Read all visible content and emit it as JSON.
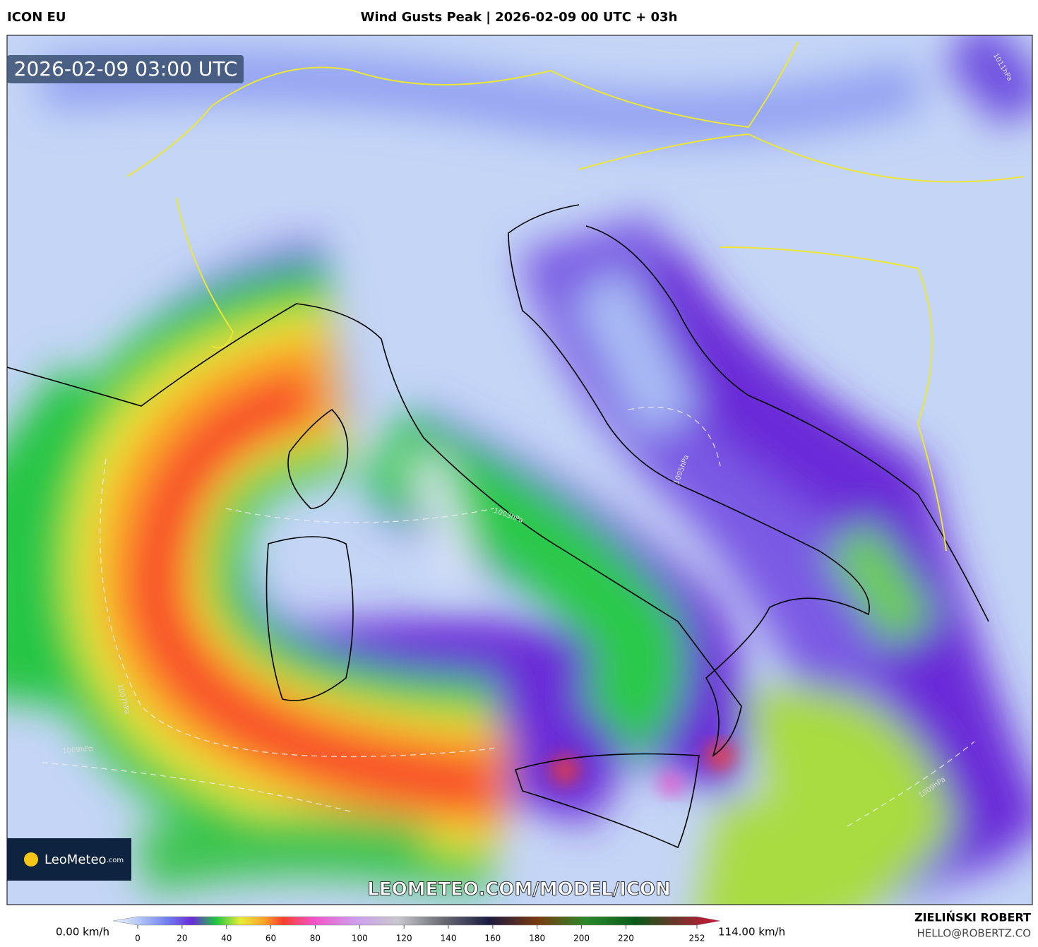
{
  "header": {
    "model": "ICON EU",
    "title": "Wind Gusts Peak | 2026-02-09 00 UTC + 03h"
  },
  "map": {
    "timestamp": "2026-02-09 03:00 UTC",
    "watermark": "LEOMETEO.COM/MODEL/ICON",
    "logo": "LeoMeteo",
    "logo_suffix": ".com",
    "isobars": [
      "1005hPa",
      "1003hPa",
      "1007hPa",
      "1009hPa",
      "1009hPa",
      "1011hPa"
    ]
  },
  "colorbar": {
    "min_label": "0.00 km/h",
    "max_label": "114.00 km/h",
    "ticks": [
      0,
      20,
      40,
      60,
      80,
      100,
      120,
      140,
      160,
      180,
      200,
      220,
      252
    ]
  },
  "footer": {
    "author": "ZIELIŃSKI ROBERT",
    "contact": "HELLO@ROBERTZ.CO"
  }
}
